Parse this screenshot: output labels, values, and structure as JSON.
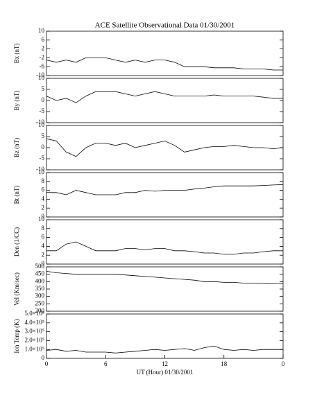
{
  "chart_data": [
    {
      "type": "line",
      "title": "ACE Satellite Observational Data   01/30/2001",
      "ylabel": "Bx (nT)",
      "x": [
        0,
        1,
        2,
        3,
        4,
        5,
        6,
        7,
        8,
        9,
        10,
        11,
        12,
        13,
        14,
        15,
        16,
        17,
        18,
        19,
        20,
        21,
        22,
        23,
        24
      ],
      "xlim": [
        0,
        24
      ],
      "values": [
        -3,
        -4,
        -3,
        -4,
        -2,
        -2,
        -2,
        -3,
        -4,
        -3,
        -4,
        -3,
        -3,
        -4,
        -6,
        -6,
        -6,
        -6.5,
        -6.5,
        -6.5,
        -7,
        -7,
        -7,
        -7.5,
        -7.5
      ],
      "ylim": [
        -10,
        10
      ],
      "yticks": [
        -10,
        -6,
        -2,
        2,
        6,
        10
      ],
      "color": "#000000"
    },
    {
      "type": "line",
      "ylabel": "By (nT)",
      "x": [
        0,
        1,
        2,
        3,
        4,
        5,
        6,
        7,
        8,
        9,
        10,
        11,
        12,
        13,
        14,
        15,
        16,
        17,
        18,
        19,
        20,
        21,
        22,
        23,
        24
      ],
      "xlim": [
        0,
        24
      ],
      "values": [
        2,
        0,
        1,
        -1,
        2,
        4,
        4,
        4,
        3,
        2,
        3,
        4,
        3,
        2,
        2,
        2,
        2,
        2.5,
        2,
        2,
        2,
        2,
        1.5,
        1,
        1
      ],
      "ylim": [
        -10,
        10
      ],
      "yticks": [
        -10,
        -5,
        0,
        5,
        10
      ],
      "color": "#000000"
    },
    {
      "type": "line",
      "ylabel": "Bz (nT)",
      "x": [
        0,
        1,
        2,
        3,
        4,
        5,
        6,
        7,
        8,
        9,
        10,
        11,
        12,
        13,
        14,
        15,
        16,
        17,
        18,
        19,
        20,
        21,
        22,
        23,
        24
      ],
      "xlim": [
        0,
        24
      ],
      "values": [
        4,
        3,
        -2,
        -4,
        0,
        2,
        2,
        1,
        2,
        0,
        1,
        2,
        3,
        1,
        -2,
        -1,
        0,
        0.5,
        0.5,
        1,
        0.5,
        0,
        0,
        -0.5,
        0
      ],
      "ylim": [
        -10,
        10
      ],
      "yticks": [
        -10,
        -5,
        0,
        5,
        10
      ],
      "color": "#000000"
    },
    {
      "type": "line",
      "ylabel": "Bt (nT)",
      "x": [
        0,
        1,
        2,
        3,
        4,
        5,
        6,
        7,
        8,
        9,
        10,
        11,
        12,
        13,
        14,
        15,
        16,
        17,
        18,
        19,
        20,
        21,
        22,
        23,
        24
      ],
      "xlim": [
        0,
        24
      ],
      "values": [
        5.5,
        5.5,
        5,
        6,
        5.5,
        5,
        5,
        5,
        5.5,
        5.5,
        6,
        5.8,
        6,
        6,
        6,
        6.3,
        6.5,
        6.8,
        7,
        7,
        7,
        7,
        7.1,
        7.2,
        7.3
      ],
      "ylim": [
        0,
        10
      ],
      "yticks": [
        0,
        2,
        4,
        6,
        8,
        10
      ],
      "color": "#000000"
    },
    {
      "type": "line",
      "ylabel": "Den (1/CC)",
      "x": [
        0,
        1,
        2,
        3,
        4,
        5,
        6,
        7,
        8,
        9,
        10,
        11,
        12,
        13,
        14,
        15,
        16,
        17,
        18,
        19,
        20,
        21,
        22,
        23,
        24
      ],
      "xlim": [
        0,
        24
      ],
      "values": [
        3,
        3,
        4.5,
        5,
        4,
        3,
        3,
        3,
        3.5,
        3.5,
        3.2,
        3.5,
        3.5,
        3,
        3,
        2.8,
        2.5,
        2.5,
        2.2,
        2.2,
        2.5,
        2.5,
        2.8,
        3,
        3
      ],
      "ylim": [
        0,
        10
      ],
      "yticks": [
        0,
        2,
        4,
        6,
        8,
        10
      ],
      "color": "#000000"
    },
    {
      "type": "line",
      "ylabel": "Vel (Km/sec)",
      "x": [
        0,
        1,
        2,
        3,
        4,
        5,
        6,
        7,
        8,
        9,
        10,
        11,
        12,
        13,
        14,
        15,
        16,
        17,
        18,
        19,
        20,
        21,
        22,
        23,
        24
      ],
      "xlim": [
        0,
        24
      ],
      "values": [
        470,
        460,
        455,
        450,
        450,
        450,
        450,
        450,
        445,
        440,
        435,
        430,
        425,
        420,
        415,
        410,
        400,
        400,
        395,
        395,
        390,
        390,
        388,
        385,
        385
      ],
      "ylim": [
        200,
        500
      ],
      "yticks": [
        200,
        250,
        300,
        350,
        400,
        450,
        500
      ],
      "color": "#000000"
    },
    {
      "type": "line",
      "ylabel": "Ion Temp (K)",
      "xlabel": "UT (Hour)  01/30/2001",
      "x": [
        0,
        1,
        2,
        3,
        4,
        5,
        6,
        7,
        8,
        9,
        10,
        11,
        12,
        13,
        14,
        15,
        16,
        17,
        18,
        19,
        20,
        21,
        22,
        23,
        24
      ],
      "xlim": [
        0,
        24
      ],
      "xticks": [
        0,
        6,
        12,
        18,
        {
          "value": 24,
          "label": "0"
        }
      ],
      "values": [
        90000,
        100000,
        80000,
        90000,
        70000,
        70000,
        70000,
        60000,
        70000,
        80000,
        90000,
        100000,
        90000,
        100000,
        110000,
        90000,
        120000,
        140000,
        100000,
        90000,
        100000,
        90000,
        100000,
        100000,
        100000
      ],
      "ylim": [
        0,
        500000
      ],
      "yticks": [
        0,
        {
          "value": 100000,
          "label": "1.0×10⁵"
        },
        {
          "value": 200000,
          "label": "2.0×10⁵"
        },
        {
          "value": 300000,
          "label": "3.0×10⁵"
        },
        {
          "value": 400000,
          "label": "4.0×10⁵"
        },
        {
          "value": 500000,
          "label": "5.0×10⁵"
        }
      ],
      "color": "#000000"
    }
  ]
}
